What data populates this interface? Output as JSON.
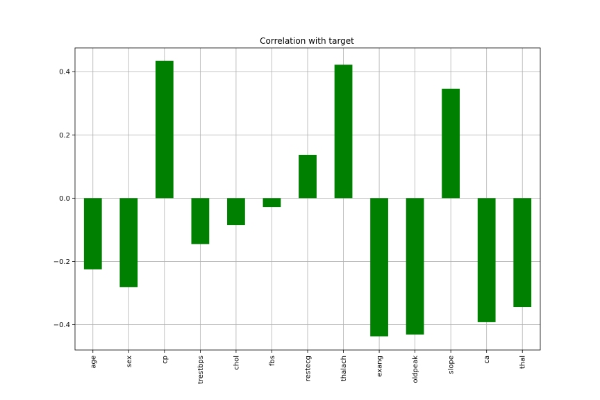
{
  "chart_data": {
    "type": "bar",
    "title": "Correlation with target",
    "xlabel": "",
    "ylabel": "",
    "categories": [
      "age",
      "sex",
      "cp",
      "trestbps",
      "chol",
      "fbs",
      "restecg",
      "thalach",
      "exang",
      "oldpeak",
      "slope",
      "ca",
      "thal"
    ],
    "values": [
      -0.225,
      -0.281,
      0.434,
      -0.145,
      -0.085,
      -0.028,
      0.137,
      0.422,
      -0.437,
      -0.431,
      0.346,
      -0.392,
      -0.344
    ],
    "ylim": [
      -0.48,
      0.475
    ],
    "yticks": [
      -0.4,
      -0.2,
      0.0,
      0.2,
      0.4
    ],
    "ytick_labels": [
      "−0.4",
      "−0.2",
      "0.0",
      "0.2",
      "0.4"
    ],
    "grid": true,
    "bar_color": "#008000"
  }
}
